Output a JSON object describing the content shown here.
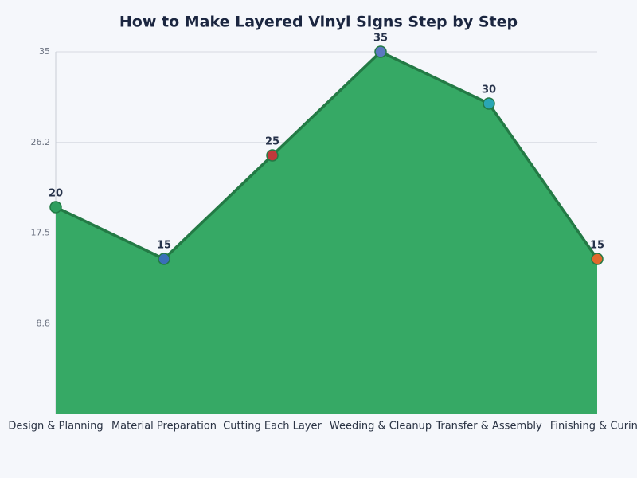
{
  "chart_data": {
    "type": "area",
    "title": "How to Make Layered Vinyl Signs Step by Step",
    "categories": [
      "Design & Planning",
      "Material Preparation",
      "Cutting Each Layer",
      "Weeding & Cleanup",
      "Transfer & Assembly",
      "Finishing & Curing"
    ],
    "values": [
      20,
      15,
      25,
      35,
      30,
      15
    ],
    "point_colors": [
      "#2e9e5e",
      "#3a6fb8",
      "#c0393b",
      "#5b78c0",
      "#2aa6b4",
      "#e0692c"
    ],
    "color": "#36a965",
    "line_color": "#237a45",
    "ylim": [
      0,
      35
    ],
    "yticks": [
      {
        "value": 8.75,
        "label": "8.8"
      },
      {
        "value": 17.5,
        "label": "17.5"
      },
      {
        "value": 26.25,
        "label": "26.2"
      },
      35
    ],
    "grid": true
  }
}
